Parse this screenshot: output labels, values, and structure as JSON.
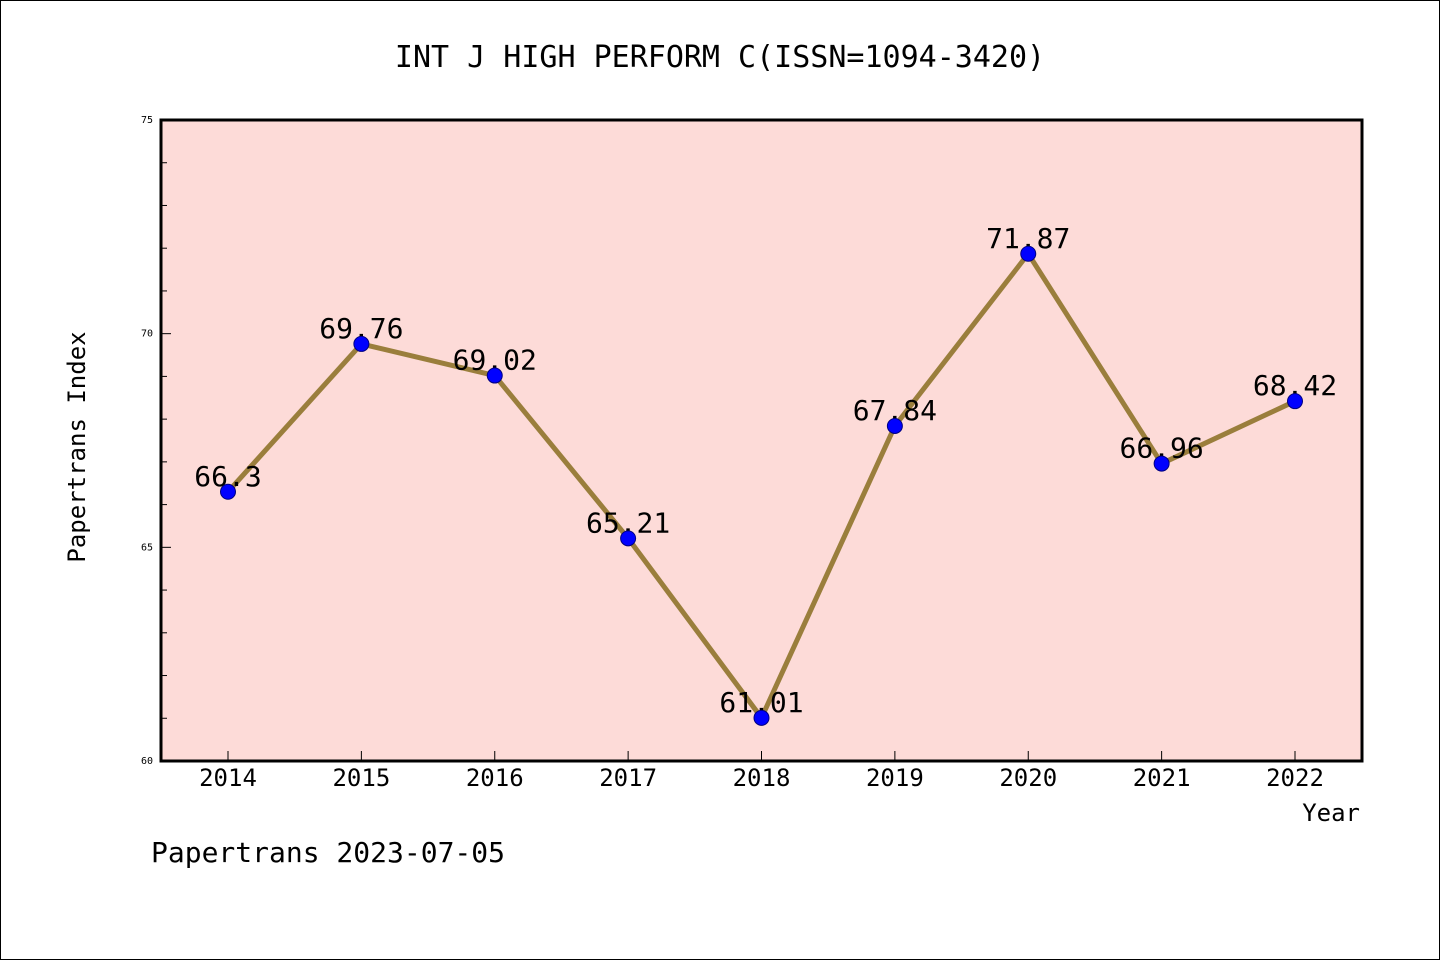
{
  "chart_data": {
    "type": "line",
    "title": "INT J HIGH PERFORM C(ISSN=1094-3420)",
    "xlabel": "Year",
    "ylabel": "Papertrans Index",
    "categories": [
      "2014",
      "2015",
      "2016",
      "2017",
      "2018",
      "2019",
      "2020",
      "2021",
      "2022"
    ],
    "series": [
      {
        "values": [
          66.3,
          69.76,
          69.02,
          65.21,
          61.01,
          67.84,
          71.87,
          66.96,
          68.42
        ],
        "labels": [
          "66.3",
          "69.76",
          "69.02",
          "65.21",
          "61.01",
          "67.84",
          "71.87",
          "66.96",
          "68.42"
        ]
      }
    ],
    "ylim": [
      60,
      75
    ],
    "yticks": [
      "60",
      "65",
      "70",
      "75"
    ],
    "grid": false,
    "colors": {
      "plot_background": "#fddbd8",
      "line": "#9a7e3c",
      "marker": "#0000ff"
    }
  },
  "footer": {
    "caption": "Papertrans 2023-07-05"
  }
}
